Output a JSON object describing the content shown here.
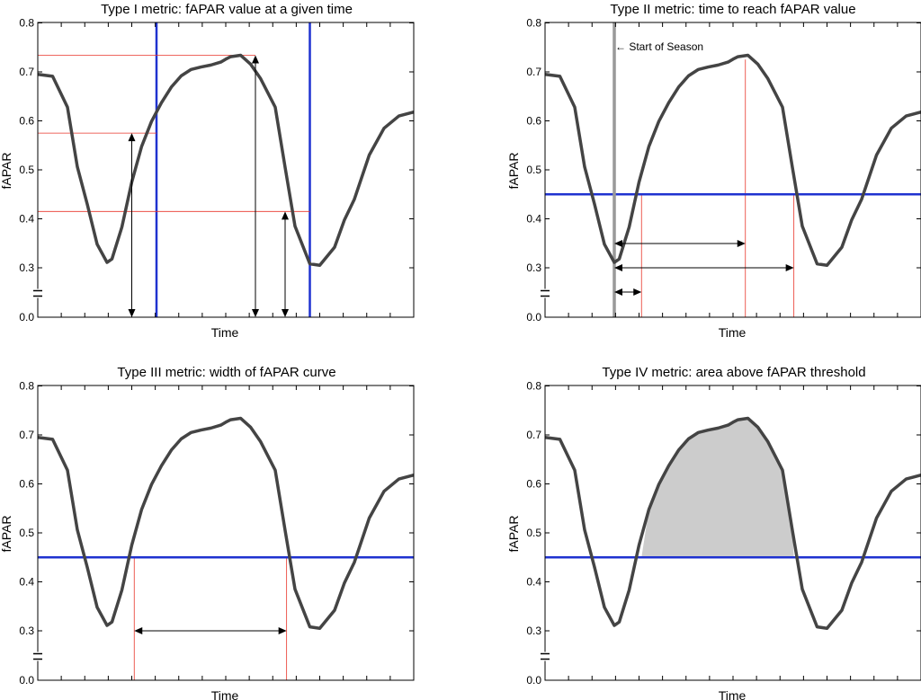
{
  "chart_data": [
    {
      "type": "line",
      "title": "Type I metric: fAPAR value at a given time",
      "xlabel": "Time",
      "ylabel": "fAPAR",
      "ylim": [
        0,
        0.8
      ],
      "yticks": [
        "0.0",
        "0.3",
        "0.4",
        "0.5",
        "0.6",
        "0.7",
        "0.8"
      ],
      "axis_break": true,
      "series": [
        {
          "x": [
            0,
            3,
            6,
            8,
            10,
            12,
            14,
            15,
            17,
            19,
            21,
            23,
            25,
            27,
            29,
            31,
            33,
            35,
            37,
            38,
            39,
            41,
            43,
            45,
            48,
            50,
            52,
            55,
            57,
            60,
            62,
            64,
            67,
            70,
            73,
            76
          ],
          "y": [
            0.695,
            0.691,
            0.628,
            0.506,
            0.43,
            0.348,
            0.311,
            0.318,
            0.383,
            0.475,
            0.548,
            0.599,
            0.637,
            0.669,
            0.692,
            0.705,
            0.71,
            0.714,
            0.72,
            0.726,
            0.731,
            0.734,
            0.716,
            0.687,
            0.628,
            0.505,
            0.385,
            0.308,
            0.305,
            0.342,
            0.398,
            0.44,
            0.53,
            0.585,
            0.61,
            0.618
          ],
          "color": "#444444"
        }
      ],
      "vlines": [
        {
          "x": 24,
          "color": "#1f32d0"
        },
        {
          "x": 55,
          "color": "#1f32d0"
        }
      ],
      "guides_y": [
        0.734,
        0.575,
        0.415
      ],
      "value_arrows": [
        {
          "x": 19,
          "y": 0.575
        },
        {
          "x": 44,
          "y": 0.734
        },
        {
          "x": 50,
          "y": 0.415
        }
      ]
    },
    {
      "type": "line",
      "title": "Type II metric: time to reach fAPAR value",
      "xlabel": "Time",
      "ylabel": "fAPAR",
      "ylim": [
        0,
        0.8
      ],
      "yticks": [
        "0.0",
        "0.3",
        "0.4",
        "0.5",
        "0.6",
        "0.7",
        "0.8"
      ],
      "axis_break": true,
      "series": [
        {
          "x": [
            0,
            3,
            6,
            8,
            10,
            12,
            14,
            15,
            17,
            19,
            21,
            23,
            25,
            27,
            29,
            31,
            33,
            35,
            37,
            38,
            39,
            41,
            43,
            45,
            48,
            50,
            52,
            55,
            57,
            60,
            62,
            64,
            67,
            70,
            73,
            76
          ],
          "y": [
            0.695,
            0.691,
            0.628,
            0.506,
            0.43,
            0.348,
            0.311,
            0.318,
            0.383,
            0.475,
            0.548,
            0.599,
            0.637,
            0.669,
            0.692,
            0.705,
            0.71,
            0.714,
            0.72,
            0.726,
            0.731,
            0.734,
            0.716,
            0.687,
            0.628,
            0.505,
            0.385,
            0.308,
            0.305,
            0.342,
            0.398,
            0.44,
            0.53,
            0.585,
            0.61,
            0.618
          ],
          "color": "#444444"
        }
      ],
      "threshold": 0.45,
      "season_start_x": 14,
      "start_label": "← Start of Season",
      "time_marks_x": [
        19.5,
        40.5,
        50.3
      ],
      "time_arrows": [
        {
          "from": 14,
          "to": 40.5
        },
        {
          "from": 14,
          "to": 50.3
        },
        {
          "from": 14,
          "to": 19.5
        }
      ]
    },
    {
      "type": "line",
      "title": "Type III metric: width of fAPAR curve",
      "xlabel": "Time",
      "ylabel": "fAPAR",
      "ylim": [
        0,
        0.8
      ],
      "yticks": [
        "0.0",
        "0.3",
        "0.4",
        "0.5",
        "0.6",
        "0.7",
        "0.8"
      ],
      "axis_break": true,
      "series": [
        {
          "x": [
            0,
            3,
            6,
            8,
            10,
            12,
            14,
            15,
            17,
            19,
            21,
            23,
            25,
            27,
            29,
            31,
            33,
            35,
            37,
            38,
            39,
            41,
            43,
            45,
            48,
            50,
            52,
            55,
            57,
            60,
            62,
            64,
            67,
            70,
            73,
            76
          ],
          "y": [
            0.695,
            0.691,
            0.628,
            0.506,
            0.43,
            0.348,
            0.311,
            0.318,
            0.383,
            0.475,
            0.548,
            0.599,
            0.637,
            0.669,
            0.692,
            0.705,
            0.71,
            0.714,
            0.72,
            0.726,
            0.731,
            0.734,
            0.716,
            0.687,
            0.628,
            0.505,
            0.385,
            0.308,
            0.305,
            0.342,
            0.398,
            0.44,
            0.53,
            0.585,
            0.61,
            0.618
          ],
          "color": "#444444"
        }
      ],
      "threshold": 0.45,
      "width_marks_x": [
        19.5,
        50.3
      ],
      "width_arrow_y": 0.3
    },
    {
      "type": "area",
      "title": "Type IV metric: area above fAPAR threshold",
      "xlabel": "Time",
      "ylabel": "fAPAR",
      "ylim": [
        0,
        0.8
      ],
      "yticks": [
        "0.0",
        "0.3",
        "0.4",
        "0.5",
        "0.6",
        "0.7",
        "0.8"
      ],
      "axis_break": true,
      "series": [
        {
          "x": [
            0,
            3,
            6,
            8,
            10,
            12,
            14,
            15,
            17,
            19,
            21,
            23,
            25,
            27,
            29,
            31,
            33,
            35,
            37,
            38,
            39,
            41,
            43,
            45,
            48,
            50,
            52,
            55,
            57,
            60,
            62,
            64,
            67,
            70,
            73,
            76
          ],
          "y": [
            0.695,
            0.691,
            0.628,
            0.506,
            0.43,
            0.348,
            0.311,
            0.318,
            0.383,
            0.475,
            0.548,
            0.599,
            0.637,
            0.669,
            0.692,
            0.705,
            0.71,
            0.714,
            0.72,
            0.726,
            0.731,
            0.734,
            0.716,
            0.687,
            0.628,
            0.505,
            0.385,
            0.308,
            0.305,
            0.342,
            0.398,
            0.44,
            0.53,
            0.585,
            0.61,
            0.618
          ],
          "color": "#444444"
        }
      ],
      "threshold": 0.45,
      "fill_color": "#cccccc"
    }
  ],
  "colors": {
    "curve": "#444444",
    "blue": "#1f32d0",
    "red": "#e8352a",
    "gray": "#999999"
  }
}
